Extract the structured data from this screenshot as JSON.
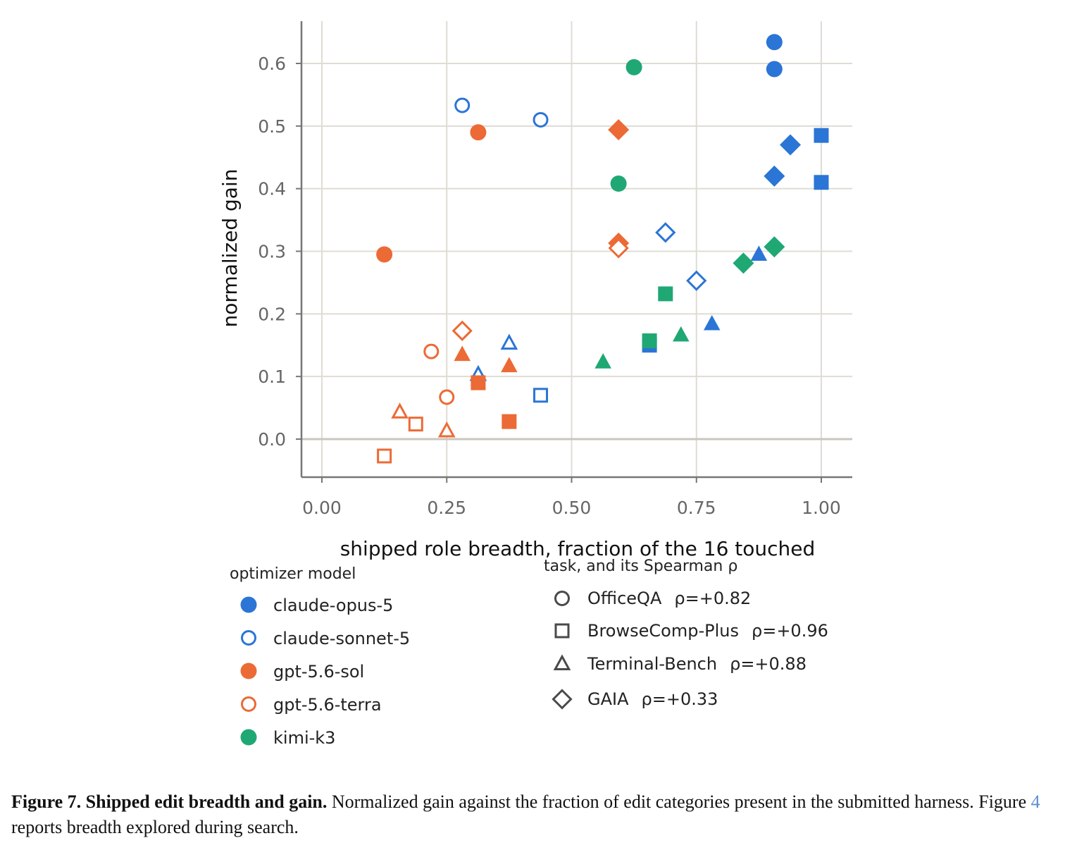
{
  "chart_data": {
    "type": "scatter",
    "xlabel": "shipped role breadth, fraction of the 16 touched",
    "ylabel": "normalized gain",
    "xlim": [
      -0.04,
      1.06
    ],
    "ylim": [
      -0.06,
      0.67
    ],
    "xticks": [
      "0.00",
      "0.25",
      "0.50",
      "0.75",
      "1.00"
    ],
    "yticks": [
      "0.0",
      "0.1",
      "0.2",
      "0.3",
      "0.4",
      "0.5",
      "0.6"
    ],
    "grid": true,
    "legend_model": {
      "title": "optimizer model",
      "entries": [
        {
          "label": "claude-opus-5",
          "color": "#2a75d6",
          "filled": true
        },
        {
          "label": "claude-sonnet-5",
          "color": "#2a75d6",
          "filled": false
        },
        {
          "label": "gpt-5.6-sol",
          "color": "#ec6a35",
          "filled": true
        },
        {
          "label": "gpt-5.6-terra",
          "color": "#ec6a35",
          "filled": false
        },
        {
          "label": "kimi-k3",
          "color": "#1fa874",
          "filled": true
        }
      ]
    },
    "legend_task": {
      "title": "task, and its Spearman ρ",
      "entries": [
        {
          "label": "OfficeQA",
          "rho": "ρ=+0.82",
          "marker": "circle"
        },
        {
          "label": "BrowseComp-Plus",
          "rho": "ρ=+0.96",
          "marker": "square"
        },
        {
          "label": "Terminal-Bench",
          "rho": "ρ=+0.88",
          "marker": "triangle"
        },
        {
          "label": "GAIA",
          "rho": "ρ=+0.33",
          "marker": "diamond"
        }
      ]
    },
    "series": [
      {
        "model": "claude-opus-5",
        "task": "OfficeQA",
        "points": [
          [
            0.906,
            0.634
          ],
          [
            0.906,
            0.591
          ]
        ]
      },
      {
        "model": "claude-opus-5",
        "task": "BrowseComp-Plus",
        "points": [
          [
            1.0,
            0.485
          ],
          [
            1.0,
            0.41
          ],
          [
            0.656,
            0.15
          ]
        ]
      },
      {
        "model": "claude-opus-5",
        "task": "Terminal-Bench",
        "points": [
          [
            0.875,
            0.295
          ],
          [
            0.781,
            0.184
          ]
        ]
      },
      {
        "model": "claude-opus-5",
        "task": "GAIA",
        "points": [
          [
            0.938,
            0.47
          ],
          [
            0.906,
            0.42
          ]
        ]
      },
      {
        "model": "claude-sonnet-5",
        "task": "OfficeQA",
        "points": [
          [
            0.281,
            0.533
          ],
          [
            0.438,
            0.51
          ]
        ]
      },
      {
        "model": "claude-sonnet-5",
        "task": "BrowseComp-Plus",
        "points": [
          [
            0.438,
            0.07
          ]
        ]
      },
      {
        "model": "claude-sonnet-5",
        "task": "Terminal-Bench",
        "points": [
          [
            0.375,
            0.153
          ],
          [
            0.313,
            0.103
          ]
        ]
      },
      {
        "model": "claude-sonnet-5",
        "task": "GAIA",
        "points": [
          [
            0.688,
            0.33
          ],
          [
            0.75,
            0.253
          ]
        ]
      },
      {
        "model": "gpt-5.6-sol",
        "task": "OfficeQA",
        "points": [
          [
            0.313,
            0.49
          ],
          [
            0.125,
            0.295
          ]
        ]
      },
      {
        "model": "gpt-5.6-sol",
        "task": "BrowseComp-Plus",
        "points": [
          [
            0.313,
            0.09
          ],
          [
            0.375,
            0.028
          ]
        ]
      },
      {
        "model": "gpt-5.6-sol",
        "task": "Terminal-Bench",
        "points": [
          [
            0.281,
            0.135
          ],
          [
            0.375,
            0.117
          ]
        ]
      },
      {
        "model": "gpt-5.6-sol",
        "task": "GAIA",
        "points": [
          [
            0.594,
            0.494
          ],
          [
            0.594,
            0.313
          ]
        ]
      },
      {
        "model": "gpt-5.6-terra",
        "task": "OfficeQA",
        "points": [
          [
            0.219,
            0.14
          ],
          [
            0.25,
            0.067
          ]
        ]
      },
      {
        "model": "gpt-5.6-terra",
        "task": "BrowseComp-Plus",
        "points": [
          [
            0.188,
            0.024
          ],
          [
            0.125,
            -0.027
          ]
        ]
      },
      {
        "model": "gpt-5.6-terra",
        "task": "Terminal-Bench",
        "points": [
          [
            0.156,
            0.043
          ],
          [
            0.25,
            0.013
          ]
        ]
      },
      {
        "model": "gpt-5.6-terra",
        "task": "GAIA",
        "points": [
          [
            0.281,
            0.173
          ],
          [
            0.594,
            0.305
          ]
        ]
      },
      {
        "model": "kimi-k3",
        "task": "OfficeQA",
        "points": [
          [
            0.625,
            0.594
          ],
          [
            0.594,
            0.408
          ]
        ]
      },
      {
        "model": "kimi-k3",
        "task": "BrowseComp-Plus",
        "points": [
          [
            0.688,
            0.232
          ],
          [
            0.656,
            0.157
          ]
        ]
      },
      {
        "model": "kimi-k3",
        "task": "Terminal-Bench",
        "points": [
          [
            0.719,
            0.166
          ],
          [
            0.563,
            0.123
          ]
        ]
      },
      {
        "model": "kimi-k3",
        "task": "GAIA",
        "points": [
          [
            0.906,
            0.307
          ],
          [
            0.844,
            0.281
          ]
        ]
      }
    ]
  },
  "caption": {
    "lead": "Figure 7. Shipped edit breadth and gain.",
    "text_1": " Normalized gain against the fraction of edit categories present in the submitted harness. Figure ",
    "ref": "4",
    "text_2": " reports breadth explored during search."
  }
}
